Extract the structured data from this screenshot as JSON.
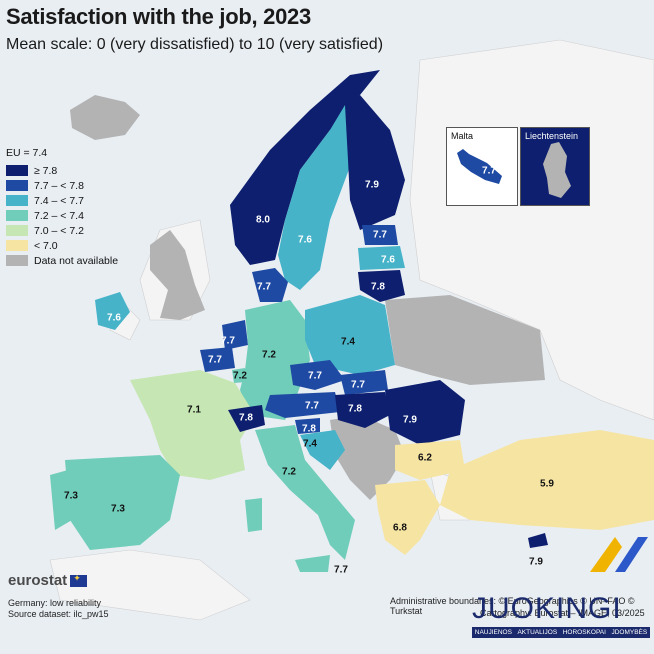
{
  "title": "Satisfaction with the job, 2023",
  "subtitle": "Mean scale: 0 (very dissatisfied) to 10 (very satisfied)",
  "legend": {
    "title": "EU = 7.4",
    "items": [
      {
        "label": "≥ 7.8",
        "color": "#0d1f6e"
      },
      {
        "label": "7.7 – < 7.8",
        "color": "#1f4aa3"
      },
      {
        "label": "7.4 – < 7.7",
        "color": "#46b3c9"
      },
      {
        "label": "7.2 – < 7.4",
        "color": "#6fcdb9"
      },
      {
        "label": "7.0 – < 7.2",
        "color": "#c6e6b3"
      },
      {
        "label": "< 7.0",
        "color": "#f6e4a3"
      },
      {
        "label": "Data not available",
        "color": "#b3b3b3"
      }
    ]
  },
  "countries": [
    {
      "name": "Iceland",
      "value": null,
      "color": "#b3b3b3"
    },
    {
      "name": "Norway",
      "value": "8.0",
      "color": "#0d1f6e"
    },
    {
      "name": "Sweden",
      "value": "7.6",
      "color": "#46b3c9"
    },
    {
      "name": "Finland",
      "value": "7.9",
      "color": "#0d1f6e"
    },
    {
      "name": "Estonia",
      "value": "7.7",
      "color": "#1f4aa3"
    },
    {
      "name": "Latvia",
      "value": "7.6",
      "color": "#46b3c9"
    },
    {
      "name": "Lithuania",
      "value": "7.8",
      "color": "#0d1f6e"
    },
    {
      "name": "Denmark",
      "value": "7.7",
      "color": "#1f4aa3"
    },
    {
      "name": "Ireland",
      "value": "7.6",
      "color": "#46b3c9"
    },
    {
      "name": "Netherlands",
      "value": "7.7",
      "color": "#1f4aa3"
    },
    {
      "name": "Belgium",
      "value": "7.7",
      "color": "#1f4aa3"
    },
    {
      "name": "Luxembourg",
      "value": "7.2",
      "color": "#6fcdb9"
    },
    {
      "name": "Germany",
      "value": "7.2",
      "color": "#6fcdb9"
    },
    {
      "name": "Poland",
      "value": "7.4",
      "color": "#46b3c9"
    },
    {
      "name": "France",
      "value": "7.1",
      "color": "#c6e6b3"
    },
    {
      "name": "Czechia",
      "value": "7.7",
      "color": "#1f4aa3"
    },
    {
      "name": "Slovakia",
      "value": "7.7",
      "color": "#1f4aa3"
    },
    {
      "name": "Austria",
      "value": "7.7",
      "color": "#1f4aa3"
    },
    {
      "name": "Hungary",
      "value": "7.8",
      "color": "#0d1f6e"
    },
    {
      "name": "Romania",
      "value": "7.9",
      "color": "#0d1f6e"
    },
    {
      "name": "Switzerland",
      "value": "7.8",
      "color": "#0d1f6e"
    },
    {
      "name": "Slovenia",
      "value": "7.8",
      "color": "#1f4aa3"
    },
    {
      "name": "Croatia",
      "value": "7.4",
      "color": "#46b3c9"
    },
    {
      "name": "Italy",
      "value": "7.2",
      "color": "#6fcdb9"
    },
    {
      "name": "Bulgaria",
      "value": "6.2",
      "color": "#f6e4a3"
    },
    {
      "name": "Greece",
      "value": "6.8",
      "color": "#f6e4a3"
    },
    {
      "name": "Türkiye",
      "value": "5.9",
      "color": "#f6e4a3"
    },
    {
      "name": "Spain",
      "value": "7.3",
      "color": "#6fcdb9"
    },
    {
      "name": "Portugal",
      "value": "7.3",
      "color": "#6fcdb9"
    },
    {
      "name": "Malta",
      "value": "7.7",
      "color": "#1f4aa3"
    },
    {
      "name": "Cyprus",
      "value": "7.9",
      "color": "#0d1f6e"
    }
  ],
  "insets": {
    "malta": "Malta",
    "malta_value": "7.7",
    "liechtenstein": "Liechtenstein"
  },
  "brand": "eurostat",
  "notes": [
    "Germany: low reliability",
    "Source dataset: ilc_pw15"
  ],
  "credits": [
    "Administrative boundaries: © EuroGeographics © UN–FAO © Turkstat",
    "Cartography: Eurostat – IMAGE, 03/2025"
  ],
  "overlay_logo": {
    "word": "JUOKINGI",
    "tags": [
      "NAUJIENOS",
      "AKTUALIJOS",
      "HOROSKOPAI",
      "JDOMYBĖS"
    ]
  },
  "colors": {
    "sea": "#e9eef3",
    "non_eu_land": "#f4f4f4",
    "no_data": "#b3b3b3"
  }
}
